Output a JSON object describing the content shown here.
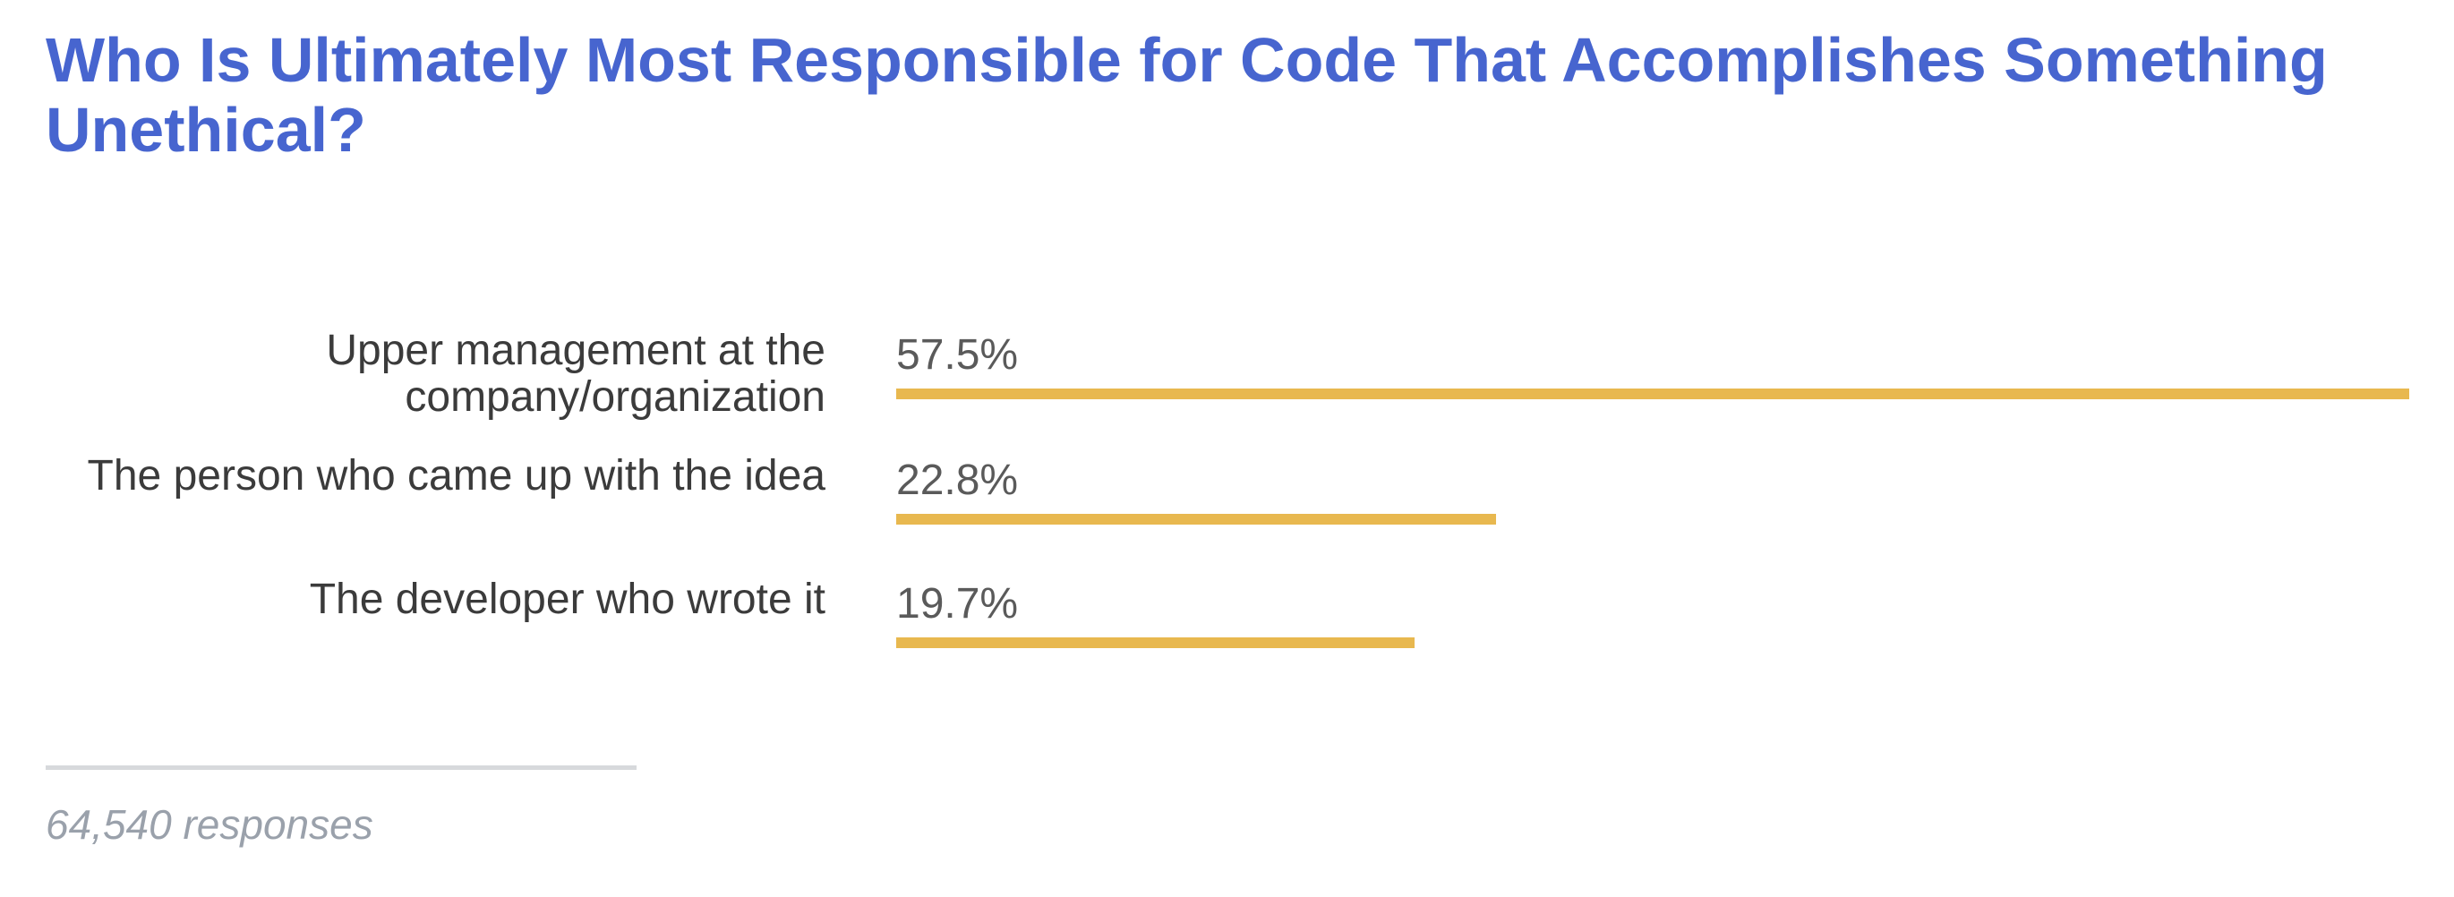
{
  "chart_data": {
    "type": "bar",
    "orientation": "horizontal",
    "title": "Who Is Ultimately Most Responsible for Code That Accomplishes Something Unethical?",
    "categories": [
      "Upper management at the company/organization",
      "The person who came up with the idea",
      "The developer who wrote it"
    ],
    "values": [
      57.5,
      22.8,
      19.7
    ],
    "value_labels": [
      "57.5%",
      "22.8%",
      "19.7%"
    ],
    "xlim": [
      0,
      57.5
    ],
    "bar_color": "#e8b84f",
    "grid": false,
    "legend": "none"
  },
  "footer": {
    "responses": "64,540 responses"
  },
  "colors": {
    "title": "#4765cf",
    "bar": "#e8b84f",
    "label": "#3b3b3b",
    "footer": "#9aa1ab"
  }
}
